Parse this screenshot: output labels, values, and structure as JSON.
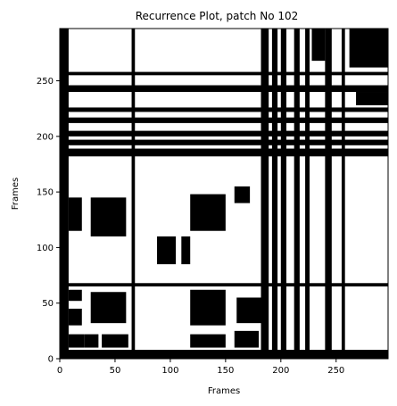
{
  "chart_data": {
    "type": "heatmap",
    "title": "Recurrence Plot, patch No 102",
    "xlabel": "Frames",
    "ylabel": "Frames",
    "xlim": [
      0,
      297
    ],
    "ylim": [
      0,
      297
    ],
    "x_ticks": [
      "0",
      "50",
      "100",
      "150",
      "200",
      "250"
    ],
    "y_ticks": [
      "0",
      "50",
      "100",
      "150",
      "200",
      "250"
    ],
    "colormap": [
      "#ffffff",
      "#000000"
    ],
    "grid": false,
    "symmetric": true,
    "description_values": {
      "recurrent_value": 1,
      "non_recurrent_value": 0
    },
    "recurrent_blocks": [
      {
        "x": [
          0,
          8
        ],
        "y": [
          0,
          297
        ]
      },
      {
        "x": [
          0,
          297
        ],
        "y": [
          0,
          8
        ]
      },
      {
        "x": [
          8,
          22
        ],
        "y": [
          10,
          22
        ]
      },
      {
        "x": [
          22,
          35
        ],
        "y": [
          10,
          22
        ]
      },
      {
        "x": [
          38,
          62
        ],
        "y": [
          10,
          22
        ]
      },
      {
        "x": [
          8,
          20
        ],
        "y": [
          30,
          45
        ]
      },
      {
        "x": [
          28,
          60
        ],
        "y": [
          32,
          60
        ]
      },
      {
        "x": [
          8,
          20
        ],
        "y": [
          52,
          62
        ]
      },
      {
        "x": [
          118,
          150
        ],
        "y": [
          30,
          62
        ]
      },
      {
        "x": [
          118,
          150
        ],
        "y": [
          10,
          22
        ]
      },
      {
        "x": [
          158,
          180
        ],
        "y": [
          10,
          25
        ]
      },
      {
        "x": [
          160,
          182
        ],
        "y": [
          32,
          55
        ]
      },
      {
        "x": [
          28,
          60
        ],
        "y": [
          110,
          145
        ]
      },
      {
        "x": [
          8,
          20
        ],
        "y": [
          115,
          145
        ]
      },
      {
        "x": [
          118,
          150
        ],
        "y": [
          115,
          148
        ]
      },
      {
        "x": [
          158,
          172
        ],
        "y": [
          140,
          155
        ]
      },
      {
        "x": [
          88,
          105
        ],
        "y": [
          85,
          110
        ]
      },
      {
        "x": [
          110,
          118
        ],
        "y": [
          85,
          110
        ]
      },
      {
        "x": [
          262,
          297
        ],
        "y": [
          262,
          297
        ]
      },
      {
        "x": [
          268,
          297
        ],
        "y": [
          228,
          240
        ]
      },
      {
        "x": [
          228,
          240
        ],
        "y": [
          268,
          297
        ]
      },
      {
        "x": [
          192,
          197
        ],
        "y": [
          0,
          297
        ]
      },
      {
        "x": [
          0,
          297
        ],
        "y": [
          192,
          197
        ]
      },
      {
        "x": [
          200,
          205
        ],
        "y": [
          0,
          297
        ]
      },
      {
        "x": [
          0,
          297
        ],
        "y": [
          200,
          205
        ]
      },
      {
        "x": [
          212,
          217
        ],
        "y": [
          0,
          297
        ]
      },
      {
        "x": [
          0,
          297
        ],
        "y": [
          212,
          217
        ]
      },
      {
        "x": [
          222,
          226
        ],
        "y": [
          0,
          297
        ]
      },
      {
        "x": [
          0,
          297
        ],
        "y": [
          222,
          226
        ]
      },
      {
        "x": [
          182,
          189
        ],
        "y": [
          0,
          297
        ]
      },
      {
        "x": [
          0,
          297
        ],
        "y": [
          182,
          189
        ]
      },
      {
        "x": [
          0,
          297
        ],
        "y": [
          240,
          246
        ]
      },
      {
        "x": [
          240,
          246
        ],
        "y": [
          0,
          297
        ]
      },
      {
        "x": [
          0,
          297
        ],
        "y": [
          255,
          258
        ]
      },
      {
        "x": [
          255,
          258
        ],
        "y": [
          0,
          297
        ]
      },
      {
        "x": [
          0,
          297
        ],
        "y": [
          65,
          68
        ]
      },
      {
        "x": [
          65,
          68
        ],
        "y": [
          0,
          297
        ]
      }
    ]
  }
}
